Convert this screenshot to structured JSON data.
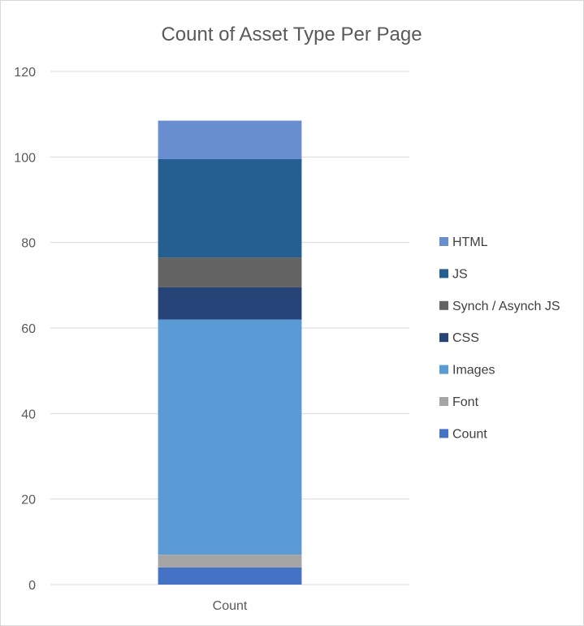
{
  "chart_data": {
    "type": "bar",
    "stacked": true,
    "title": "Count of Asset Type Per Page",
    "categories": [
      "Count"
    ],
    "ylim": [
      0,
      120
    ],
    "yticks": [
      0,
      20,
      40,
      60,
      80,
      100,
      120
    ],
    "grid": true,
    "legend_position": "right",
    "series": [
      {
        "name": "Count",
        "values": [
          4
        ],
        "color": "#4472c4"
      },
      {
        "name": "Font",
        "values": [
          3
        ],
        "color": "#a5a5a5"
      },
      {
        "name": "Images",
        "values": [
          55
        ],
        "color": "#5b9bd5"
      },
      {
        "name": "CSS",
        "values": [
          7.5
        ],
        "color": "#264478"
      },
      {
        "name": "Synch / Asynch JS",
        "values": [
          7
        ],
        "color": "#636363"
      },
      {
        "name": "JS",
        "values": [
          23
        ],
        "color": "#255e91"
      },
      {
        "name": "HTML",
        "values": [
          9
        ],
        "color": "#698ed0"
      }
    ]
  }
}
